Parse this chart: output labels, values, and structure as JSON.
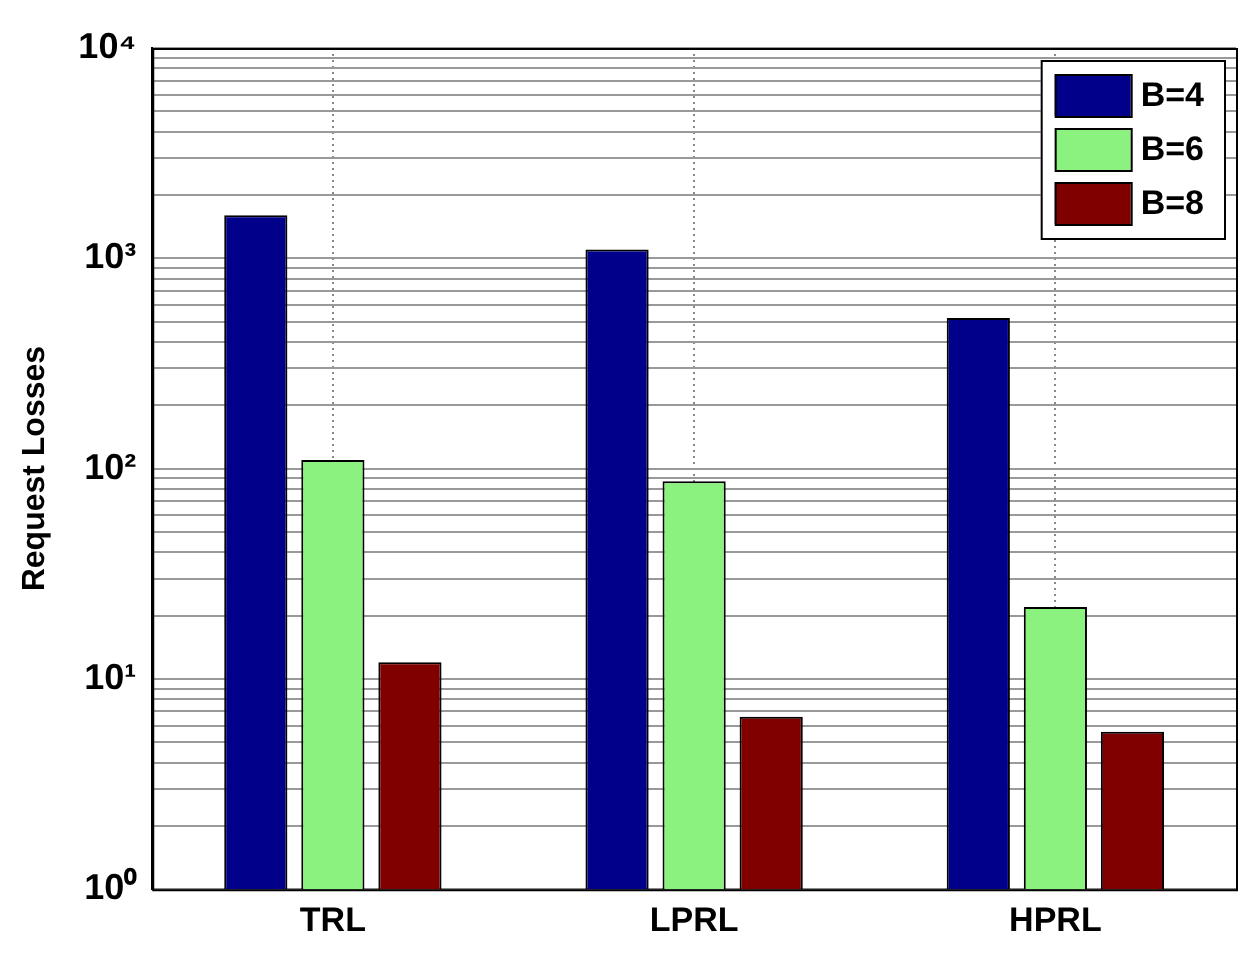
{
  "chart_data": {
    "type": "bar",
    "ylabel": "Request Losses",
    "categories": [
      "TRL",
      "LPRL",
      "HPRL"
    ],
    "series": [
      {
        "name": "B=4",
        "color": "#00008b",
        "values": [
          1600,
          1100,
          520
        ]
      },
      {
        "name": "B=6",
        "color": "#8cf27f",
        "values": [
          110,
          87,
          22
        ]
      },
      {
        "name": "B=8",
        "color": "#800000",
        "values": [
          12,
          6.6,
          5.6
        ]
      }
    ],
    "log": "y",
    "ylim": [
      1,
      10000
    ],
    "yticks": [
      {
        "value": 1,
        "label": "10⁰"
      },
      {
        "value": 2,
        "label": null
      },
      {
        "value": 3,
        "label": null
      },
      {
        "value": 4,
        "label": null
      },
      {
        "value": 5,
        "label": null
      },
      {
        "value": 6,
        "label": null
      },
      {
        "value": 7,
        "label": null
      },
      {
        "value": 8,
        "label": null
      },
      {
        "value": 9,
        "label": null
      },
      {
        "value": 10,
        "label": "10¹"
      },
      {
        "value": 20,
        "label": null
      },
      {
        "value": 30,
        "label": null
      },
      {
        "value": 40,
        "label": null
      },
      {
        "value": 50,
        "label": null
      },
      {
        "value": 60,
        "label": null
      },
      {
        "value": 70,
        "label": null
      },
      {
        "value": 80,
        "label": null
      },
      {
        "value": 90,
        "label": null
      },
      {
        "value": 100,
        "label": "10²"
      },
      {
        "value": 200,
        "label": null
      },
      {
        "value": 300,
        "label": null
      },
      {
        "value": 400,
        "label": null
      },
      {
        "value": 500,
        "label": null
      },
      {
        "value": 600,
        "label": null
      },
      {
        "value": 700,
        "label": null
      },
      {
        "value": 800,
        "label": null
      },
      {
        "value": 900,
        "label": null
      },
      {
        "value": 1000,
        "label": "10³"
      },
      {
        "value": 2000,
        "label": null
      },
      {
        "value": 3000,
        "label": null
      },
      {
        "value": 4000,
        "label": null
      },
      {
        "value": 5000,
        "label": null
      },
      {
        "value": 6000,
        "label": null
      },
      {
        "value": 7000,
        "label": null
      },
      {
        "value": 8000,
        "label": null
      },
      {
        "value": 9000,
        "label": null
      },
      {
        "value": 10000,
        "label": "10⁴"
      }
    ],
    "grid": true,
    "legend": "top right"
  }
}
